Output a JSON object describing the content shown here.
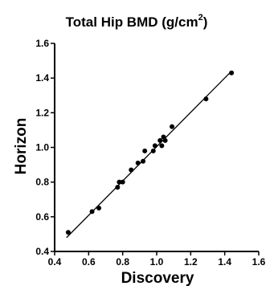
{
  "chart_data": {
    "type": "scatter",
    "title": "Total  Hip  BMD (g/cm",
    "title_superscript": "2",
    "title_close": ")",
    "xlabel": "Discovery",
    "ylabel": "Horizon",
    "xlim": [
      0.4,
      1.6
    ],
    "ylim": [
      0.4,
      1.6
    ],
    "xticks": [
      "0.4",
      "0.6",
      "0.8",
      "1.0",
      "1.2",
      "1.4",
      "1.6"
    ],
    "yticks": [
      "0.4",
      "0.6",
      "0.8",
      "1.0",
      "1.2",
      "1.4",
      "1.6"
    ],
    "grid": false,
    "points": [
      {
        "x": 0.48,
        "y": 0.51
      },
      {
        "x": 0.62,
        "y": 0.63
      },
      {
        "x": 0.66,
        "y": 0.65
      },
      {
        "x": 0.77,
        "y": 0.77
      },
      {
        "x": 0.78,
        "y": 0.8
      },
      {
        "x": 0.8,
        "y": 0.8
      },
      {
        "x": 0.85,
        "y": 0.87
      },
      {
        "x": 0.89,
        "y": 0.91
      },
      {
        "x": 0.92,
        "y": 0.92
      },
      {
        "x": 0.93,
        "y": 0.98
      },
      {
        "x": 0.98,
        "y": 0.98
      },
      {
        "x": 0.99,
        "y": 1.01
      },
      {
        "x": 1.02,
        "y": 1.04
      },
      {
        "x": 1.03,
        "y": 1.01
      },
      {
        "x": 1.04,
        "y": 1.06
      },
      {
        "x": 1.05,
        "y": 1.04
      },
      {
        "x": 1.09,
        "y": 1.12
      },
      {
        "x": 1.29,
        "y": 1.28
      },
      {
        "x": 1.44,
        "y": 1.43
      }
    ],
    "fit_line": {
      "x": [
        0.47,
        1.43
      ],
      "y": [
        0.48,
        1.43
      ]
    }
  }
}
